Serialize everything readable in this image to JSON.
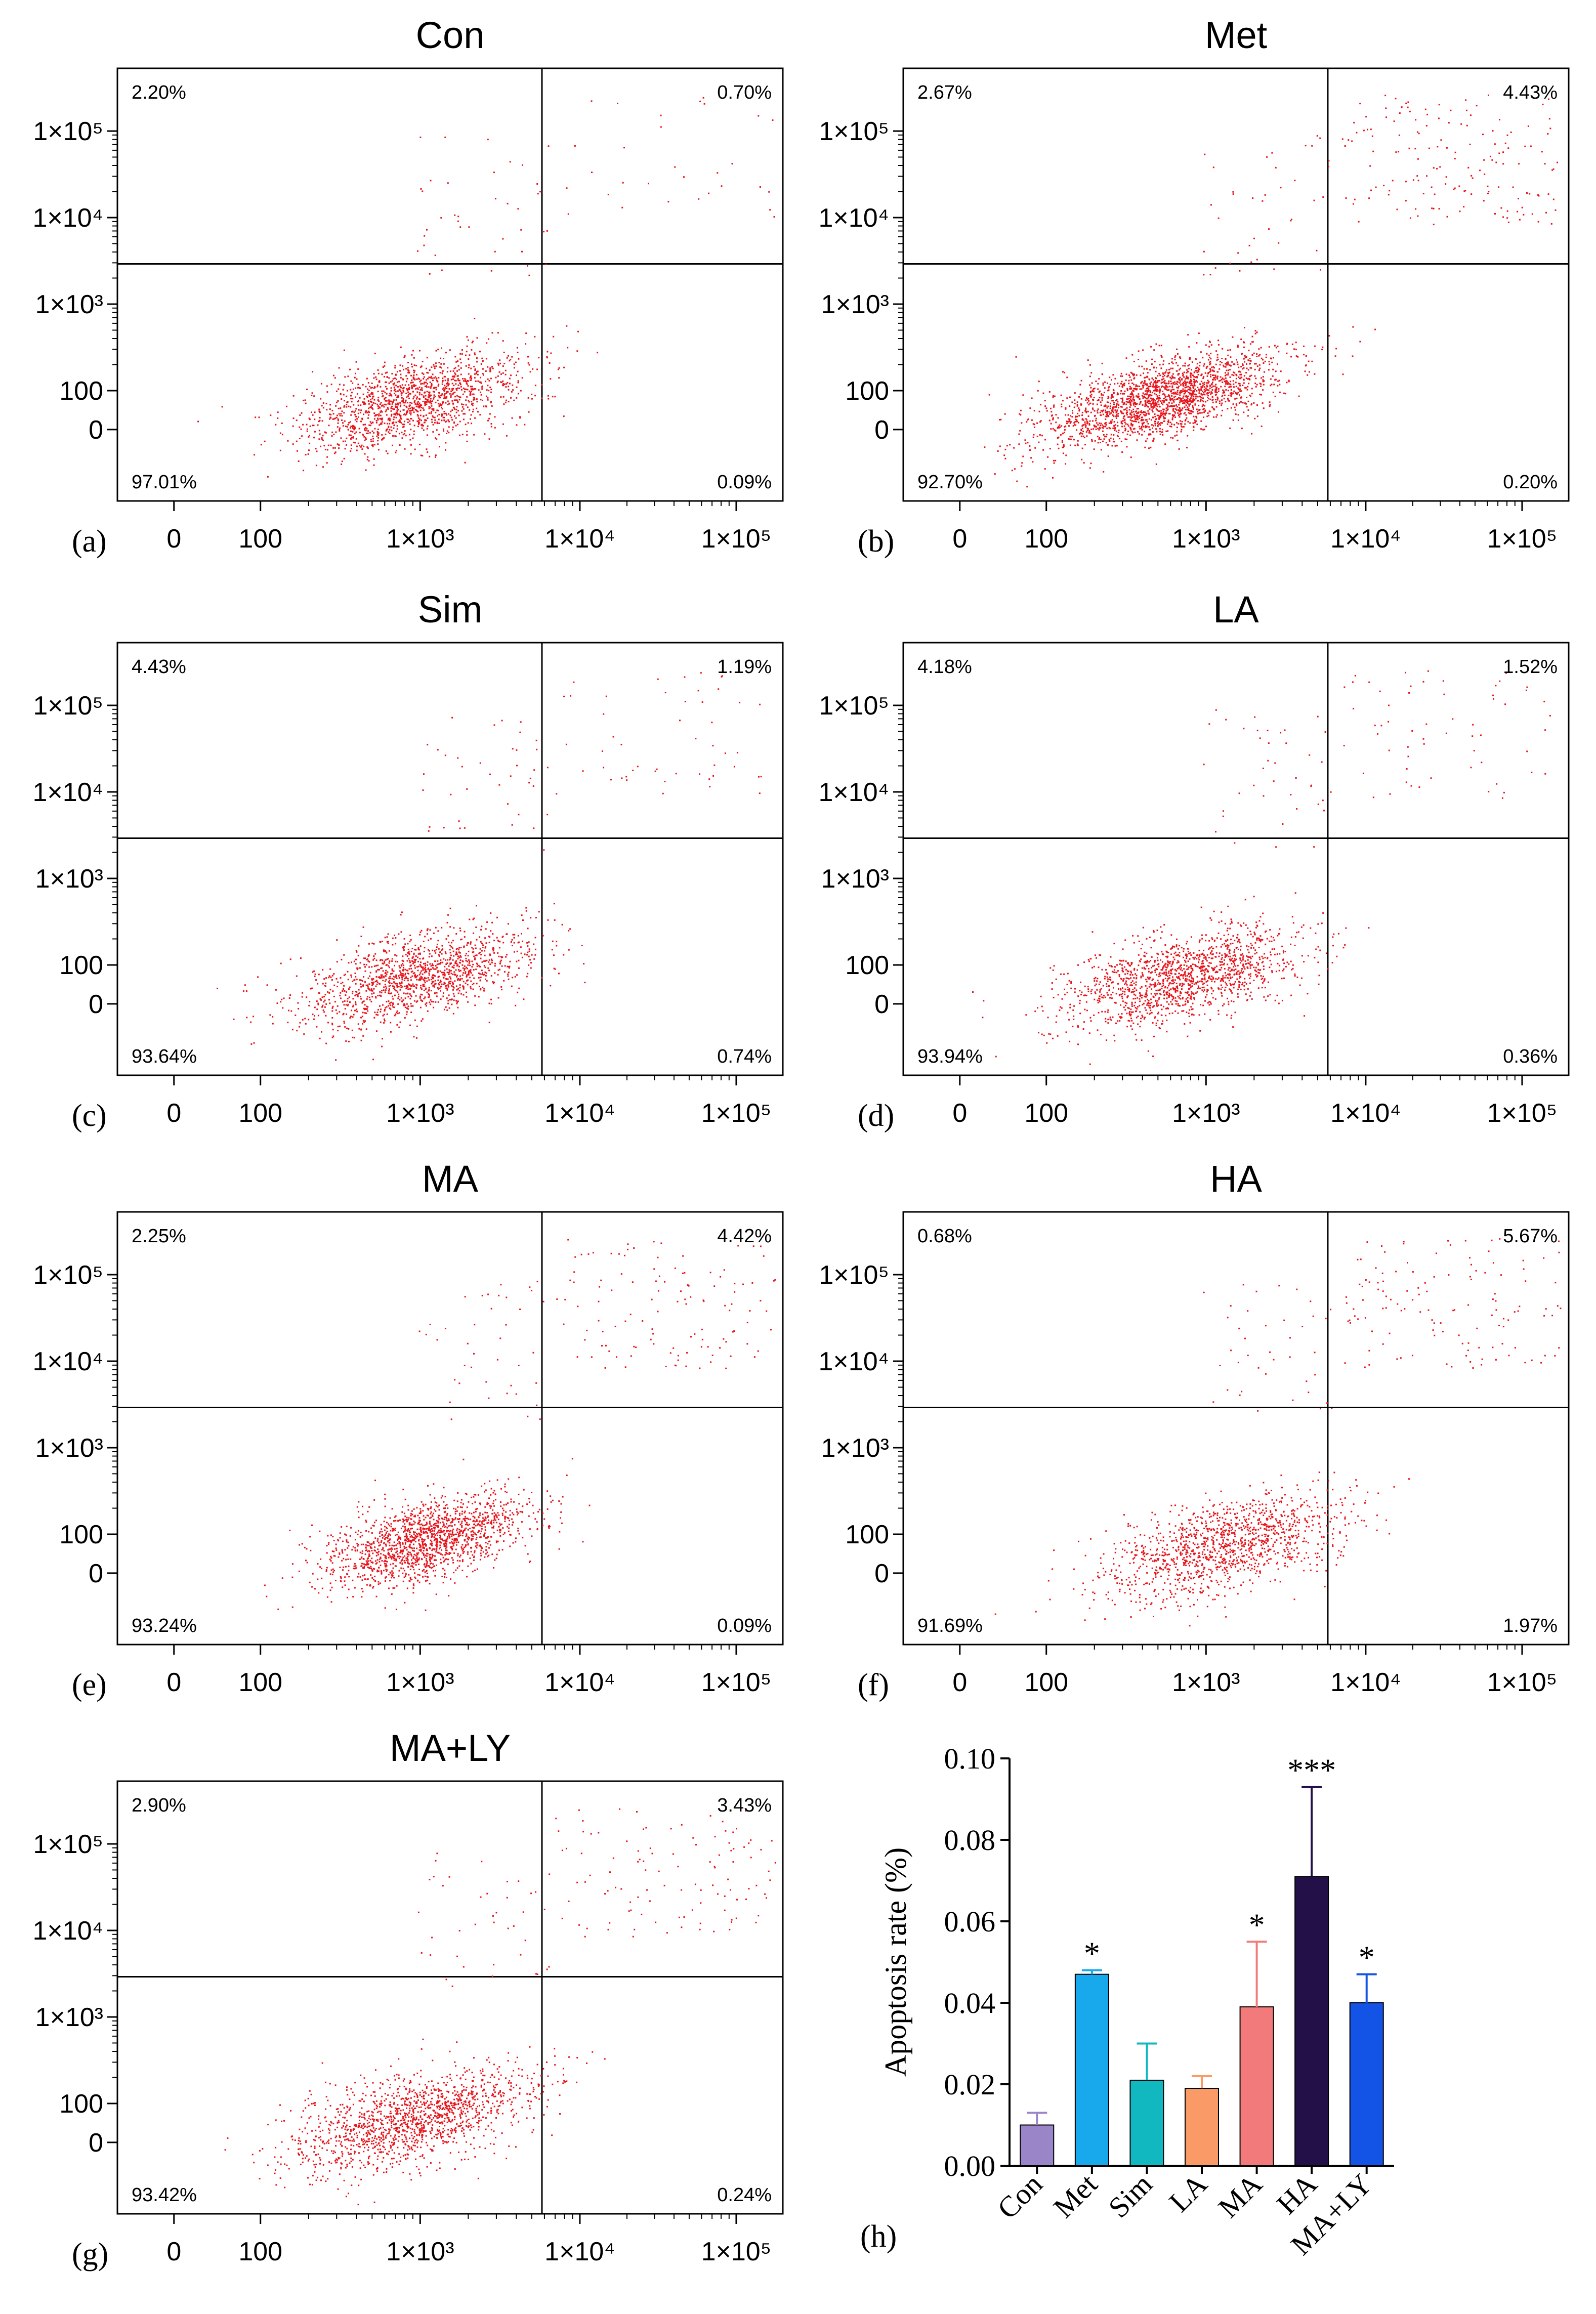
{
  "figure": {
    "panels": [
      {
        "id": "a",
        "title": "Con",
        "label": "(a)",
        "q_ul": "2.20%",
        "q_ur": "0.70%",
        "q_ll": "97.01%",
        "q_lr": "0.09%"
      },
      {
        "id": "b",
        "title": "Met",
        "label": "(b)",
        "q_ul": "2.67%",
        "q_ur": "4.43%",
        "q_ll": "92.70%",
        "q_lr": "0.20%"
      },
      {
        "id": "c",
        "title": "Sim",
        "label": "(c)",
        "q_ul": "4.43%",
        "q_ur": "1.19%",
        "q_ll": "93.64%",
        "q_lr": "0.74%"
      },
      {
        "id": "d",
        "title": "LA",
        "label": "(d)",
        "q_ul": "4.18%",
        "q_ur": "1.52%",
        "q_ll": "93.94%",
        "q_lr": "0.36%"
      },
      {
        "id": "e",
        "title": "MA",
        "label": "(e)",
        "q_ul": "2.25%",
        "q_ur": "4.42%",
        "q_ll": "93.24%",
        "q_lr": "0.09%"
      },
      {
        "id": "f",
        "title": "HA",
        "label": "(f)",
        "q_ul": "0.68%",
        "q_ur": "5.67%",
        "q_ll": "91.69%",
        "q_lr": "1.97%"
      },
      {
        "id": "g",
        "title": "MA+LY",
        "label": "(g)",
        "q_ul": "2.90%",
        "q_ur": "3.43%",
        "q_ll": "93.42%",
        "q_lr": "0.24%"
      }
    ],
    "flow_axis": {
      "y_ticks": [
        "1×10⁵",
        "1×10⁴",
        "1×10³",
        "100",
        "0"
      ],
      "x_ticks": [
        "0",
        "100",
        "1×10³",
        "1×10⁴",
        "1×10⁵"
      ]
    },
    "bar_label": "(h)",
    "colors": {
      "dots": "#e8141b",
      "axis": "#000000",
      "gate": "#000000"
    }
  },
  "chart_data": [
    {
      "type": "scatter",
      "note": "flow cytometry quadrant plots (a)-(g), log-like axes 0 to 1×10⁵",
      "panels": [
        "Con",
        "Met",
        "Sim",
        "LA",
        "MA",
        "HA",
        "MA+LY"
      ],
      "quadrant_percent": {
        "Con": {
          "UL": 2.2,
          "UR": 0.7,
          "LL": 97.01,
          "LR": 0.09
        },
        "Met": {
          "UL": 2.67,
          "UR": 4.43,
          "LL": 92.7,
          "LR": 0.2
        },
        "Sim": {
          "UL": 4.43,
          "UR": 1.19,
          "LL": 93.64,
          "LR": 0.74
        },
        "LA": {
          "UL": 4.18,
          "UR": 1.52,
          "LL": 93.94,
          "LR": 0.36
        },
        "MA": {
          "UL": 2.25,
          "UR": 4.42,
          "LL": 93.24,
          "LR": 0.09
        },
        "HA": {
          "UL": 0.68,
          "UR": 5.67,
          "LL": 91.69,
          "LR": 1.97
        },
        "MA+LY": {
          "UL": 2.9,
          "UR": 3.43,
          "LL": 93.42,
          "LR": 0.24
        }
      }
    },
    {
      "type": "bar",
      "categories": [
        "Con",
        "Met",
        "Sim",
        "LA",
        "MA",
        "HA",
        "MA+LY"
      ],
      "values": [
        0.01,
        0.047,
        0.021,
        0.019,
        0.039,
        0.071,
        0.04
      ],
      "errors": [
        0.003,
        0.001,
        0.009,
        0.003,
        0.016,
        0.022,
        0.007
      ],
      "significance": [
        "",
        "*",
        "",
        "",
        "*",
        "***",
        "*"
      ],
      "colors": [
        "#9b85c9",
        "#18a9ec",
        "#12b8c0",
        "#f99a67",
        "#f37a7a",
        "#241048",
        "#1353e6"
      ],
      "ylabel": "Apoptosis rate (%)",
      "ylim": [
        0.0,
        0.1
      ],
      "yticks": [
        "0.00",
        "0.02",
        "0.04",
        "0.06",
        "0.08",
        "0.10"
      ]
    }
  ]
}
